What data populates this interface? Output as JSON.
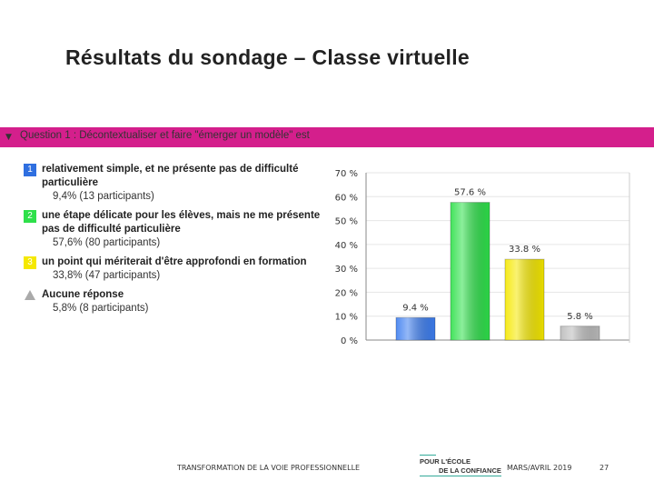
{
  "title": "Résultats du sondage – Classe virtuelle",
  "question": {
    "label": "Question 1 : Décontextualiser et faire \"émerger un modèle\" est",
    "color": "#d41f8c"
  },
  "answers": [
    {
      "badge": "1",
      "color": "#2f6fe0",
      "label": "relativement simple, et ne présente pas de difficulté particulière",
      "stats": "9,4% (13 participants)"
    },
    {
      "badge": "2",
      "color": "#2ee04a",
      "label": "une étape délicate pour les élèves, mais ne me présente pas de difficulté particulière",
      "stats": "57,6% (80 participants)"
    },
    {
      "badge": "3",
      "color": "#f5e800",
      "label": "un point qui mériterait d'être approfondi en formation",
      "stats": "33,8% (47 participants)"
    },
    {
      "badge": "",
      "color": "#aaaaaa",
      "label": "Aucune réponse",
      "stats": "5,8% (8 participants)"
    }
  ],
  "chart_data": {
    "type": "bar",
    "categories": [
      "1",
      "2",
      "3",
      "Aucune réponse"
    ],
    "values": [
      9.4,
      57.6,
      33.8,
      5.8
    ],
    "data_labels": [
      "9.4 %",
      "57.6 %",
      "33.8 %",
      "5.8 %"
    ],
    "colors": [
      "#3d7ef0",
      "#2ee04a",
      "#f5e800",
      "#bbbbbb"
    ],
    "yticks": [
      "0 %",
      "10 %",
      "20 %",
      "30 %",
      "40 %",
      "50 %",
      "60 %",
      "70 %"
    ],
    "ylim": [
      0,
      70
    ],
    "grid": true
  },
  "footer": {
    "left": "TRANSFORMATION DE LA VOIE PROFESSIONNELLE",
    "logo_line1": "POUR L'ÉCOLE",
    "logo_line2": "DE LA CONFIANCE",
    "date": "MARS/AVRIL 2019",
    "page": "27"
  }
}
